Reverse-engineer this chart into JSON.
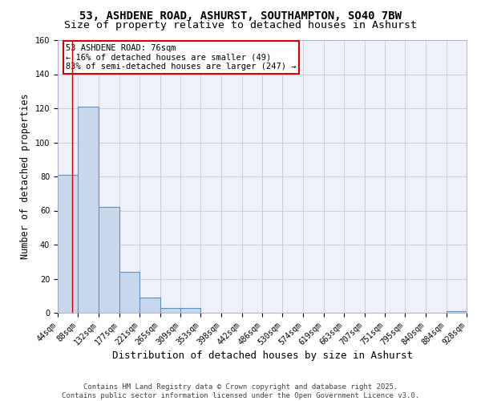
{
  "title": "53, ASHDENE ROAD, ASHURST, SOUTHAMPTON, SO40 7BW",
  "subtitle": "Size of property relative to detached houses in Ashurst",
  "xlabel": "Distribution of detached houses by size in Ashurst",
  "ylabel": "Number of detached properties",
  "bin_edges": [
    44,
    88,
    132,
    177,
    221,
    265,
    309,
    353,
    398,
    442,
    486,
    530,
    574,
    619,
    663,
    707,
    751,
    795,
    840,
    884,
    928
  ],
  "counts": [
    81,
    121,
    62,
    24,
    9,
    3,
    3,
    0,
    0,
    0,
    0,
    0,
    0,
    0,
    0,
    0,
    0,
    0,
    0,
    1
  ],
  "bar_color": "#c8d8ec",
  "bar_edge_color": "#6090b8",
  "bar_edge_width": 0.8,
  "red_line_x": 76,
  "annotation_text": "53 ASHDENE ROAD: 76sqm\n← 16% of detached houses are smaller (49)\n83% of semi-detached houses are larger (247) →",
  "annotation_box_color": "#cc0000",
  "ylim": [
    0,
    160
  ],
  "yticks": [
    0,
    20,
    40,
    60,
    80,
    100,
    120,
    140,
    160
  ],
  "grid_color": "#c8d0e0",
  "background_color": "#eef2f8",
  "footer_line1": "Contains HM Land Registry data © Crown copyright and database right 2025.",
  "footer_line2": "Contains public sector information licensed under the Open Government Licence v3.0.",
  "title_fontsize": 10,
  "subtitle_fontsize": 9.5,
  "axis_label_fontsize": 8.5,
  "tick_fontsize": 7,
  "annotation_fontsize": 7.5,
  "footer_fontsize": 6.5
}
